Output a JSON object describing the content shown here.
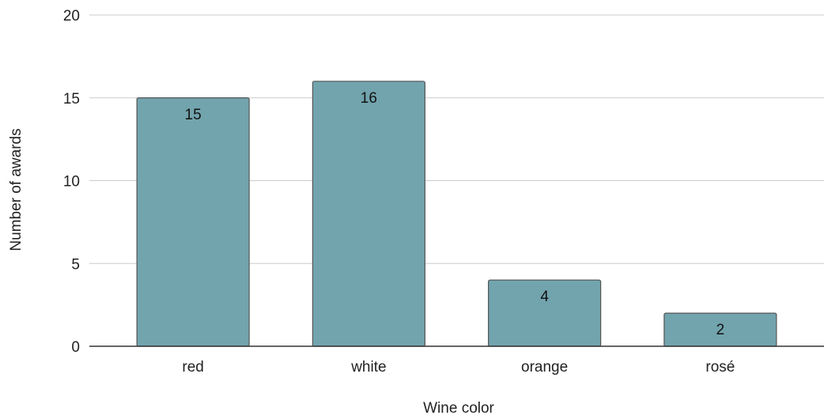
{
  "chart_data": {
    "type": "bar",
    "categories": [
      "red",
      "white",
      "orange",
      "rosé"
    ],
    "values": [
      15,
      16,
      4,
      2
    ],
    "title": "",
    "xlabel": "Wine color",
    "ylabel": "Number of awards",
    "ylim": [
      0,
      20
    ],
    "yticks": [
      0,
      5,
      10,
      15,
      20
    ],
    "grid": true,
    "bar_color": "#72a4ae",
    "bar_border_color": "#555555",
    "data_labels": true
  }
}
